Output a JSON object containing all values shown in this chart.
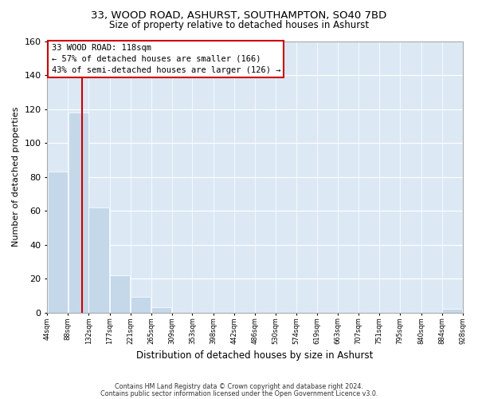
{
  "title1": "33, WOOD ROAD, ASHURST, SOUTHAMPTON, SO40 7BD",
  "title2": "Size of property relative to detached houses in Ashurst",
  "xlabel": "Distribution of detached houses by size in Ashurst",
  "ylabel": "Number of detached properties",
  "bin_edges": [
    44,
    88,
    132,
    177,
    221,
    265,
    309,
    353,
    398,
    442,
    486,
    530,
    574,
    619,
    663,
    707,
    751,
    795,
    840,
    884,
    928
  ],
  "bar_heights": [
    83,
    118,
    62,
    22,
    9,
    3,
    0,
    0,
    0,
    0,
    0,
    0,
    0,
    0,
    0,
    0,
    0,
    0,
    0,
    2
  ],
  "bar_color": "#c5d8ea",
  "bar_edge_color": "#ffffff",
  "property_line_x": 118,
  "property_line_color": "#cc0000",
  "annotation_title": "33 WOOD ROAD: 118sqm",
  "annotation_line1": "← 57% of detached houses are smaller (166)",
  "annotation_line2": "43% of semi-detached houses are larger (126) →",
  "annotation_box_color": "#ffffff",
  "annotation_box_edge_color": "#cc0000",
  "ylim": [
    0,
    160
  ],
  "yticks": [
    0,
    20,
    40,
    60,
    80,
    100,
    120,
    140,
    160
  ],
  "tick_labels": [
    "44sqm",
    "88sqm",
    "132sqm",
    "177sqm",
    "221sqm",
    "265sqm",
    "309sqm",
    "353sqm",
    "398sqm",
    "442sqm",
    "486sqm",
    "530sqm",
    "574sqm",
    "619sqm",
    "663sqm",
    "707sqm",
    "751sqm",
    "795sqm",
    "840sqm",
    "884sqm",
    "928sqm"
  ],
  "footer1": "Contains HM Land Registry data © Crown copyright and database right 2024.",
  "footer2": "Contains public sector information licensed under the Open Government Licence v3.0.",
  "background_color": "#ffffff",
  "plot_background_color": "#dce9f5"
}
